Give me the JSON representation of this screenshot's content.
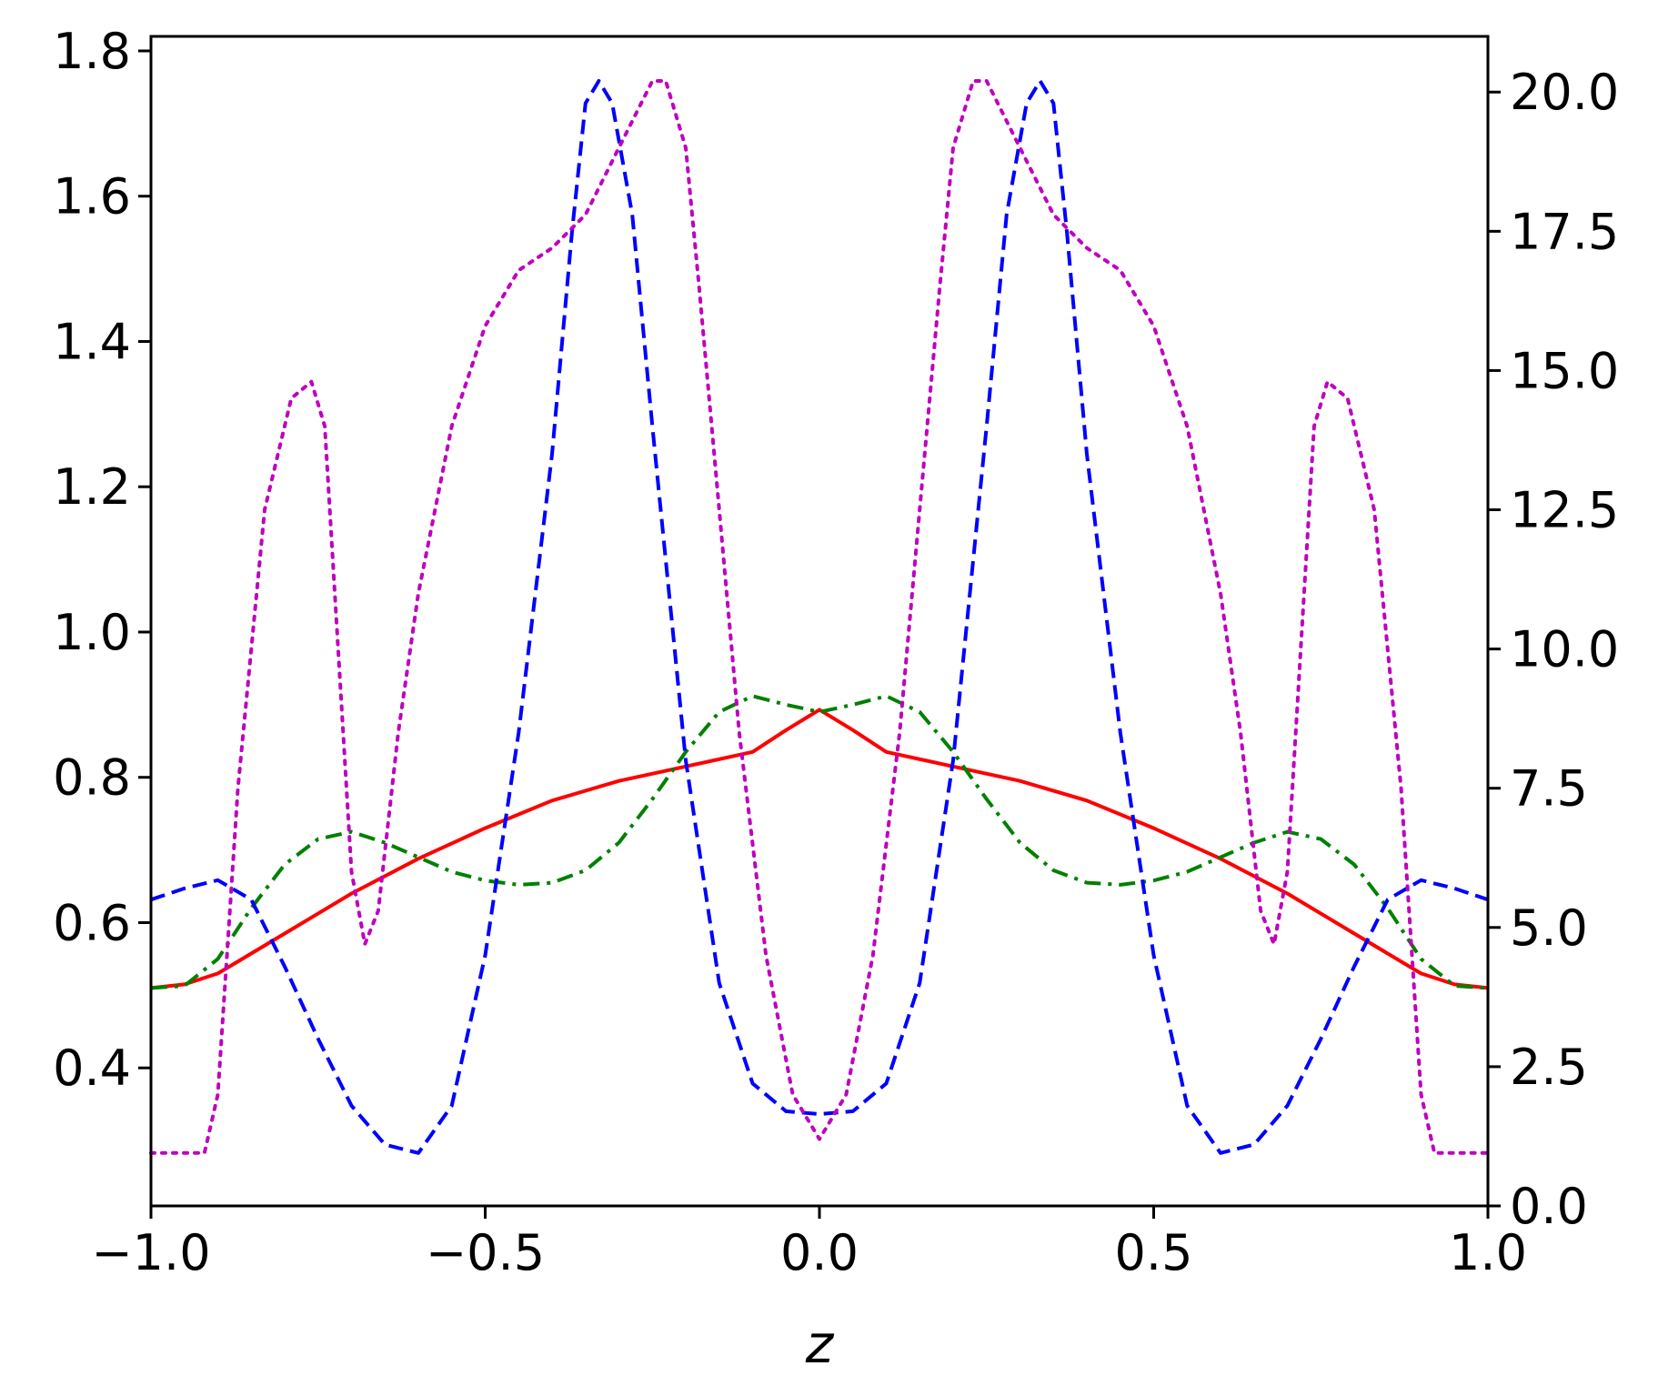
{
  "chart_data": {
    "type": "line",
    "title": "",
    "xlabel": "z",
    "ylabel": "",
    "ylabel_right": "",
    "xlim": [
      -1.0,
      1.0
    ],
    "ylim": [
      0.21,
      1.82
    ],
    "ylim_right": [
      0.0,
      21.0
    ],
    "grid": false,
    "x_ticks": [
      -1.0,
      -0.5,
      0.0,
      0.5,
      1.0
    ],
    "x_tick_labels": [
      "−1.0",
      "−0.5",
      "0.0",
      "0.5",
      "1.0"
    ],
    "y_ticks": [
      0.4,
      0.6,
      0.8,
      1.0,
      1.2,
      1.4,
      1.6,
      1.8
    ],
    "y_tick_labels": [
      "0.4",
      "0.6",
      "0.8",
      "1.0",
      "1.2",
      "1.4",
      "1.6",
      "1.8"
    ],
    "y_right_ticks": [
      0.0,
      2.5,
      5.0,
      7.5,
      10.0,
      12.5,
      15.0,
      17.5,
      20.0
    ],
    "y_right_tick_labels": [
      "0.0",
      "2.5",
      "5.0",
      "7.5",
      "10.0",
      "12.5",
      "15.0",
      "17.5",
      "20.0"
    ],
    "series": [
      {
        "axis": "left",
        "color": "#ff0000",
        "style": "solid",
        "points": [
          [
            -1.0,
            0.51
          ],
          [
            -0.95,
            0.515
          ],
          [
            -0.9,
            0.53
          ],
          [
            -0.8,
            0.585
          ],
          [
            -0.7,
            0.64
          ],
          [
            -0.6,
            0.688
          ],
          [
            -0.5,
            0.73
          ],
          [
            -0.4,
            0.768
          ],
          [
            -0.3,
            0.795
          ],
          [
            -0.2,
            0.815
          ],
          [
            -0.1,
            0.835
          ],
          [
            -0.05,
            0.865
          ],
          [
            0.0,
            0.893
          ],
          [
            0.05,
            0.865
          ],
          [
            0.1,
            0.835
          ],
          [
            0.2,
            0.815
          ],
          [
            0.3,
            0.795
          ],
          [
            0.4,
            0.768
          ],
          [
            0.5,
            0.73
          ],
          [
            0.6,
            0.688
          ],
          [
            0.7,
            0.64
          ],
          [
            0.8,
            0.585
          ],
          [
            0.9,
            0.53
          ],
          [
            0.95,
            0.515
          ],
          [
            1.0,
            0.51
          ]
        ]
      },
      {
        "axis": "left",
        "color": "#008000",
        "style": "dashdot",
        "points": [
          [
            -1.0,
            0.51
          ],
          [
            -0.95,
            0.513
          ],
          [
            -0.9,
            0.55
          ],
          [
            -0.85,
            0.62
          ],
          [
            -0.8,
            0.68
          ],
          [
            -0.75,
            0.715
          ],
          [
            -0.7,
            0.725
          ],
          [
            -0.65,
            0.71
          ],
          [
            -0.6,
            0.69
          ],
          [
            -0.55,
            0.67
          ],
          [
            -0.5,
            0.658
          ],
          [
            -0.45,
            0.652
          ],
          [
            -0.4,
            0.655
          ],
          [
            -0.35,
            0.672
          ],
          [
            -0.3,
            0.71
          ],
          [
            -0.25,
            0.77
          ],
          [
            -0.2,
            0.835
          ],
          [
            -0.15,
            0.89
          ],
          [
            -0.1,
            0.912
          ],
          [
            -0.05,
            0.9
          ],
          [
            0.0,
            0.89
          ],
          [
            0.05,
            0.9
          ],
          [
            0.1,
            0.912
          ],
          [
            0.15,
            0.89
          ],
          [
            0.2,
            0.835
          ],
          [
            0.25,
            0.77
          ],
          [
            0.3,
            0.71
          ],
          [
            0.35,
            0.672
          ],
          [
            0.4,
            0.655
          ],
          [
            0.45,
            0.652
          ],
          [
            0.5,
            0.658
          ],
          [
            0.55,
            0.67
          ],
          [
            0.6,
            0.69
          ],
          [
            0.65,
            0.71
          ],
          [
            0.7,
            0.725
          ],
          [
            0.75,
            0.715
          ],
          [
            0.8,
            0.68
          ],
          [
            0.85,
            0.62
          ],
          [
            0.9,
            0.55
          ],
          [
            0.95,
            0.513
          ],
          [
            1.0,
            0.51
          ]
        ]
      },
      {
        "axis": "right",
        "color": "#0000ff",
        "style": "dashed",
        "points": [
          [
            -1.0,
            5.5
          ],
          [
            -0.95,
            5.7
          ],
          [
            -0.9,
            5.85
          ],
          [
            -0.85,
            5.5
          ],
          [
            -0.8,
            4.3
          ],
          [
            -0.75,
            3.0
          ],
          [
            -0.7,
            1.8
          ],
          [
            -0.65,
            1.1
          ],
          [
            -0.6,
            0.95
          ],
          [
            -0.55,
            1.8
          ],
          [
            -0.5,
            4.5
          ],
          [
            -0.45,
            8.5
          ],
          [
            -0.4,
            13.5
          ],
          [
            -0.37,
            17.5
          ],
          [
            -0.35,
            19.8
          ],
          [
            -0.33,
            20.2
          ],
          [
            -0.31,
            19.8
          ],
          [
            -0.28,
            17.8
          ],
          [
            -0.25,
            14.0
          ],
          [
            -0.2,
            8.0
          ],
          [
            -0.15,
            4.0
          ],
          [
            -0.1,
            2.2
          ],
          [
            -0.05,
            1.7
          ],
          [
            0.0,
            1.65
          ],
          [
            0.05,
            1.7
          ],
          [
            0.1,
            2.2
          ],
          [
            0.15,
            4.0
          ],
          [
            0.2,
            8.0
          ],
          [
            0.25,
            14.0
          ],
          [
            0.28,
            17.8
          ],
          [
            0.31,
            19.8
          ],
          [
            0.33,
            20.2
          ],
          [
            0.35,
            19.8
          ],
          [
            0.37,
            17.5
          ],
          [
            0.4,
            13.5
          ],
          [
            0.45,
            8.5
          ],
          [
            0.5,
            4.5
          ],
          [
            0.55,
            1.8
          ],
          [
            0.6,
            0.95
          ],
          [
            0.65,
            1.1
          ],
          [
            0.7,
            1.8
          ],
          [
            0.75,
            3.0
          ],
          [
            0.8,
            4.3
          ],
          [
            0.85,
            5.5
          ],
          [
            0.9,
            5.85
          ],
          [
            0.95,
            5.7
          ],
          [
            1.0,
            5.5
          ]
        ]
      },
      {
        "axis": "right",
        "color": "#bf00bf",
        "style": "dotted",
        "points": [
          [
            -1.0,
            0.95
          ],
          [
            -0.92,
            0.95
          ],
          [
            -0.9,
            2.0
          ],
          [
            -0.87,
            7.5
          ],
          [
            -0.83,
            12.5
          ],
          [
            -0.79,
            14.5
          ],
          [
            -0.76,
            14.8
          ],
          [
            -0.74,
            14.0
          ],
          [
            -0.72,
            10.0
          ],
          [
            -0.7,
            6.0
          ],
          [
            -0.68,
            4.7
          ],
          [
            -0.66,
            5.3
          ],
          [
            -0.63,
            8.5
          ],
          [
            -0.6,
            11.0
          ],
          [
            -0.55,
            14.0
          ],
          [
            -0.5,
            15.8
          ],
          [
            -0.45,
            16.8
          ],
          [
            -0.4,
            17.2
          ],
          [
            -0.35,
            17.8
          ],
          [
            -0.3,
            19.0
          ],
          [
            -0.25,
            20.2
          ],
          [
            -0.23,
            20.2
          ],
          [
            -0.2,
            19.0
          ],
          [
            -0.18,
            16.5
          ],
          [
            -0.15,
            12.5
          ],
          [
            -0.12,
            8.5
          ],
          [
            -0.08,
            4.5
          ],
          [
            -0.04,
            2.0
          ],
          [
            0.0,
            1.2
          ],
          [
            0.04,
            2.0
          ],
          [
            0.08,
            4.5
          ],
          [
            0.12,
            8.5
          ],
          [
            0.15,
            12.5
          ],
          [
            0.18,
            16.5
          ],
          [
            0.2,
            19.0
          ],
          [
            0.23,
            20.2
          ],
          [
            0.25,
            20.2
          ],
          [
            0.3,
            19.0
          ],
          [
            0.35,
            17.8
          ],
          [
            0.4,
            17.2
          ],
          [
            0.45,
            16.8
          ],
          [
            0.5,
            15.8
          ],
          [
            0.55,
            14.0
          ],
          [
            0.6,
            11.0
          ],
          [
            0.63,
            8.5
          ],
          [
            0.66,
            5.3
          ],
          [
            0.68,
            4.7
          ],
          [
            0.7,
            6.0
          ],
          [
            0.72,
            10.0
          ],
          [
            0.74,
            14.0
          ],
          [
            0.76,
            14.8
          ],
          [
            0.79,
            14.5
          ],
          [
            0.83,
            12.5
          ],
          [
            0.87,
            7.5
          ],
          [
            0.9,
            2.0
          ],
          [
            0.92,
            0.95
          ],
          [
            1.0,
            0.95
          ]
        ]
      }
    ]
  }
}
